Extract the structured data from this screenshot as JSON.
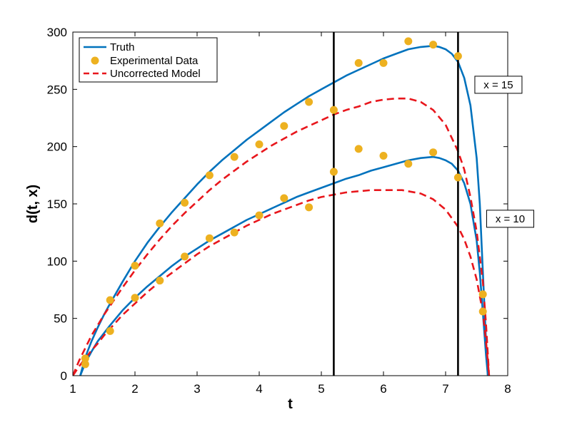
{
  "chart_data": {
    "type": "line",
    "title": "",
    "xlabel": "t",
    "ylabel": "d(t, x)",
    "xlim": [
      1,
      8
    ],
    "ylim": [
      0,
      300
    ],
    "xticks": [
      "1",
      "2",
      "3",
      "4",
      "5",
      "6",
      "7",
      "8"
    ],
    "yticks": [
      "0",
      "50",
      "100",
      "150",
      "200",
      "250",
      "300"
    ],
    "grid": false,
    "legend_position": "top-left",
    "legend": [
      "Truth",
      "Experimental Data",
      "Uncorrected Model"
    ],
    "vertical_lines": [
      5.2,
      7.2
    ],
    "colors": {
      "truth": "#0072bd",
      "data": "#edb120",
      "model": "#e8161c",
      "vline": "#000000"
    },
    "series": [
      {
        "name": "Truth",
        "group": "x = 15",
        "style": "solid",
        "x": [
          1.12,
          1.2,
          1.3,
          1.4,
          1.5,
          1.6,
          1.8,
          2.0,
          2.2,
          2.4,
          2.6,
          2.8,
          3.0,
          3.2,
          3.4,
          3.6,
          3.8,
          4.0,
          4.2,
          4.4,
          4.6,
          4.8,
          5.0,
          5.2,
          5.4,
          5.6,
          5.8,
          6.0,
          6.2,
          6.4,
          6.6,
          6.8,
          6.9,
          7.0,
          7.1,
          7.2,
          7.3,
          7.4,
          7.5,
          7.55,
          7.6,
          7.65,
          7.68
        ],
        "y": [
          0,
          16,
          30,
          42,
          53,
          63,
          82,
          100,
          116,
          130,
          143,
          155,
          167,
          178,
          188,
          197,
          206,
          214,
          222,
          230,
          237,
          244,
          250,
          256,
          262,
          267,
          272,
          277,
          281,
          285,
          287,
          288,
          287,
          285,
          281,
          274,
          260,
          236,
          190,
          150,
          90,
          30,
          0
        ]
      },
      {
        "name": "Truth",
        "group": "x = 10",
        "style": "solid",
        "x": [
          1.12,
          1.2,
          1.3,
          1.4,
          1.5,
          1.6,
          1.8,
          2.0,
          2.2,
          2.4,
          2.6,
          2.8,
          3.0,
          3.2,
          3.4,
          3.6,
          3.8,
          4.0,
          4.2,
          4.4,
          4.6,
          4.8,
          5.0,
          5.2,
          5.4,
          5.6,
          5.8,
          6.0,
          6.2,
          6.4,
          6.6,
          6.8,
          6.9,
          7.0,
          7.1,
          7.2,
          7.3,
          7.4,
          7.5,
          7.55,
          7.6,
          7.65,
          7.68
        ],
        "y": [
          0,
          11,
          21,
          30,
          37,
          44,
          57,
          68,
          78,
          87,
          96,
          104,
          111,
          118,
          124,
          130,
          136,
          141,
          146,
          151,
          156,
          160,
          164,
          168,
          172,
          175,
          179,
          182,
          185,
          188,
          190,
          191,
          190,
          188,
          185,
          179,
          168,
          150,
          118,
          90,
          55,
          18,
          0
        ]
      },
      {
        "name": "Uncorrected Model",
        "group": "x = 15",
        "style": "dashed",
        "x": [
          1.0,
          1.1,
          1.2,
          1.3,
          1.4,
          1.5,
          1.6,
          1.8,
          2.0,
          2.2,
          2.4,
          2.6,
          2.8,
          3.0,
          3.2,
          3.4,
          3.6,
          3.8,
          4.0,
          4.2,
          4.4,
          4.6,
          4.8,
          5.0,
          5.2,
          5.4,
          5.6,
          5.8,
          6.0,
          6.2,
          6.3,
          6.4,
          6.6,
          6.8,
          7.0,
          7.2,
          7.3,
          7.4,
          7.5,
          7.6,
          7.65,
          7.7
        ],
        "y": [
          0,
          13,
          24,
          35,
          44,
          53,
          61,
          77,
          92,
          106,
          119,
          131,
          142,
          152,
          162,
          171,
          179,
          187,
          194,
          201,
          207,
          213,
          218,
          223,
          228,
          232,
          235,
          239,
          241,
          242,
          242,
          242,
          239,
          232,
          219,
          196,
          180,
          156,
          126,
          82,
          45,
          0
        ]
      },
      {
        "name": "Uncorrected Model",
        "group": "x = 10",
        "style": "dashed",
        "x": [
          1.0,
          1.1,
          1.2,
          1.3,
          1.4,
          1.5,
          1.6,
          1.8,
          2.0,
          2.2,
          2.4,
          2.6,
          2.8,
          3.0,
          3.2,
          3.4,
          3.6,
          3.8,
          4.0,
          4.2,
          4.4,
          4.6,
          4.8,
          5.0,
          5.2,
          5.4,
          5.6,
          5.8,
          6.0,
          6.2,
          6.3,
          6.4,
          6.6,
          6.8,
          7.0,
          7.2,
          7.3,
          7.4,
          7.5,
          7.6,
          7.65,
          7.7
        ],
        "y": [
          0,
          8,
          15,
          22,
          28,
          35,
          41,
          53,
          63,
          73,
          82,
          90,
          98,
          106,
          113,
          119,
          125,
          131,
          136,
          141,
          145,
          149,
          153,
          156,
          158,
          160,
          161,
          162,
          162,
          162,
          162,
          161,
          159,
          154,
          145,
          130,
          119,
          104,
          84,
          55,
          30,
          0
        ]
      }
    ],
    "scatter": {
      "name": "Experimental Data",
      "points": [
        [
          1.2,
          15
        ],
        [
          1.2,
          10
        ],
        [
          1.6,
          66
        ],
        [
          1.6,
          39
        ],
        [
          2.0,
          96
        ],
        [
          2.0,
          68
        ],
        [
          2.4,
          133
        ],
        [
          2.4,
          83
        ],
        [
          2.8,
          151
        ],
        [
          2.8,
          104
        ],
        [
          3.2,
          175
        ],
        [
          3.2,
          120
        ],
        [
          3.6,
          191
        ],
        [
          3.6,
          125
        ],
        [
          4.0,
          202
        ],
        [
          4.0,
          140
        ],
        [
          4.4,
          218
        ],
        [
          4.4,
          155
        ],
        [
          4.8,
          239
        ],
        [
          4.8,
          147
        ],
        [
          5.2,
          232
        ],
        [
          5.2,
          178
        ],
        [
          5.6,
          273
        ],
        [
          5.6,
          198
        ],
        [
          6.0,
          273
        ],
        [
          6.0,
          192
        ],
        [
          6.4,
          292
        ],
        [
          6.4,
          185
        ],
        [
          6.8,
          289
        ],
        [
          6.8,
          195
        ],
        [
          7.2,
          279
        ],
        [
          7.2,
          173
        ],
        [
          7.6,
          71
        ],
        [
          7.6,
          56
        ]
      ]
    },
    "annotations": [
      {
        "text": "x = 15",
        "x": 7.85,
        "y": 254
      },
      {
        "text": "x = 10",
        "x": 8.04,
        "y": 137
      }
    ]
  }
}
